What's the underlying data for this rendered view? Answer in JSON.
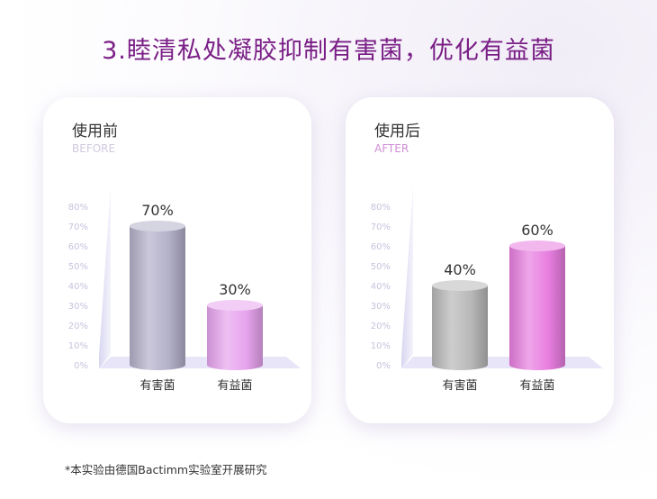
{
  "title": "3.睦清私处凝胶抑制有害菌，优化有益菌",
  "footnote": "*本实验由德国Bactimm实验室开展研究",
  "chart_data": [
    {
      "type": "bar",
      "title": "使用前",
      "subtitle": "BEFORE",
      "categories": [
        "有害菌",
        "有益菌"
      ],
      "values": [
        70,
        30
      ],
      "value_labels": [
        "70%",
        "30%"
      ],
      "bar_colors": [
        "#b3b0c9",
        "#e7a4ee"
      ],
      "yticks": [
        "0%",
        "10%",
        "20%",
        "30%",
        "40%",
        "50%",
        "60%",
        "70%",
        "80%"
      ],
      "ylim": [
        0,
        80
      ],
      "grid": false,
      "legend": "none"
    },
    {
      "type": "bar",
      "title": "使用后",
      "subtitle": "AFTER",
      "categories": [
        "有害菌",
        "有益菌"
      ],
      "values": [
        40,
        60
      ],
      "value_labels": [
        "40%",
        "60%"
      ],
      "bar_colors": [
        "#b8b8b8",
        "#e87ee0"
      ],
      "yticks": [
        "0%",
        "10%",
        "20%",
        "30%",
        "40%",
        "50%",
        "60%",
        "70%",
        "80%"
      ],
      "ylim": [
        0,
        80
      ],
      "grid": false,
      "legend": "none"
    }
  ]
}
